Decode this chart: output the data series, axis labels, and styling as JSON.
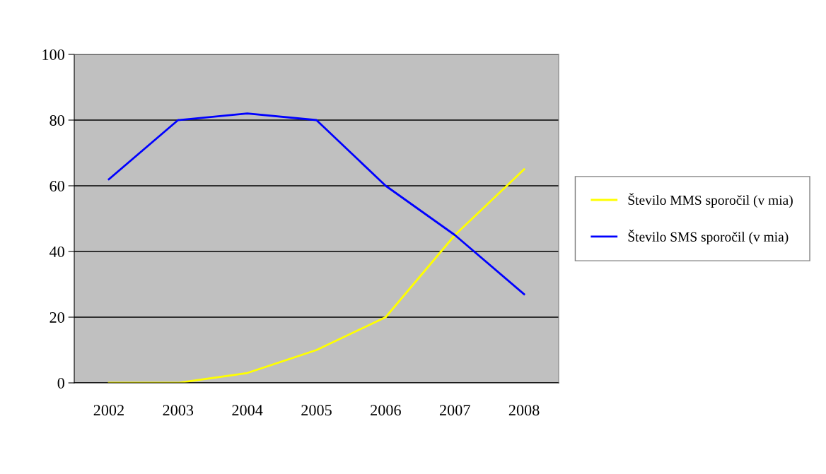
{
  "chart_data": {
    "type": "line",
    "categories": [
      "2002",
      "2003",
      "2004",
      "2005",
      "2006",
      "2007",
      "2008"
    ],
    "series": [
      {
        "name": "Število MMS sporočil (v mia)",
        "color": "#ffff00",
        "values": [
          0,
          0,
          3,
          10,
          20,
          45,
          65
        ]
      },
      {
        "name": "Število SMS sporočil (v mia)",
        "color": "#0000ff",
        "values": [
          62,
          80,
          82,
          80,
          60,
          45,
          27
        ]
      }
    ],
    "ylim": [
      0,
      100
    ],
    "yticks": [
      0,
      20,
      40,
      60,
      80,
      100
    ],
    "grid": "y",
    "legend": "right",
    "marker": "none"
  }
}
